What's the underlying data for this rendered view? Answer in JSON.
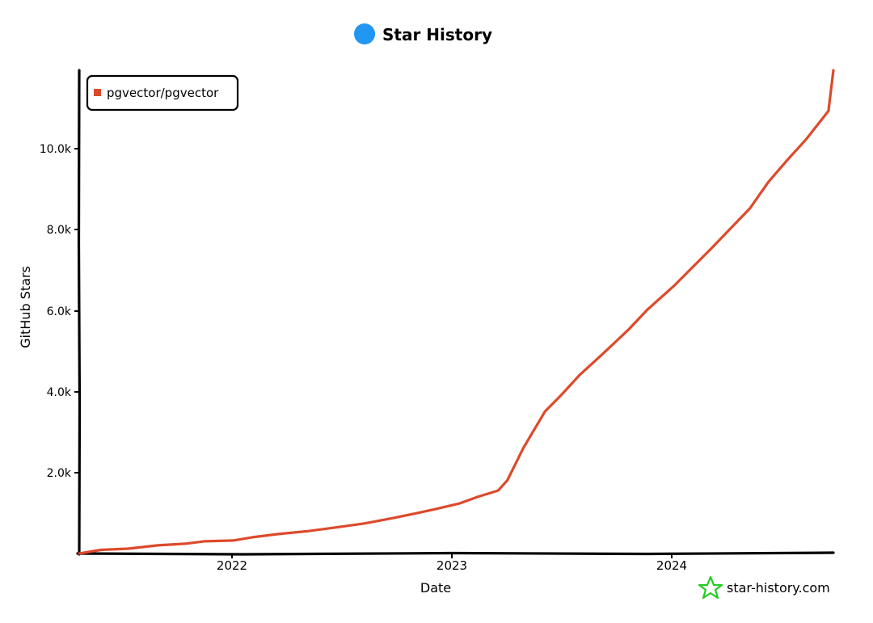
{
  "header": {
    "title": "Star History",
    "icon": "blue-circle-icon",
    "icon_color": "#2196F3"
  },
  "watermark": {
    "text": "star-history.com",
    "icon": "star-outline-icon",
    "icon_color": "#22cc22"
  },
  "chart_data": {
    "type": "line",
    "title": "Star History",
    "xlabel": "Date",
    "ylabel": "GitHub Stars",
    "x_ticks": [
      "2022",
      "2023",
      "2024"
    ],
    "y_ticks": [
      "2.0k",
      "4.0k",
      "6.0k",
      "8.0k",
      "10.0k"
    ],
    "x_range": [
      "2021-04-27",
      "2024-08-28"
    ],
    "ylim": [
      0,
      11900
    ],
    "legend": {
      "position": "top-left",
      "entries": [
        "pgvector/pgvector"
      ]
    },
    "grid": false,
    "series": [
      {
        "name": "pgvector/pgvector",
        "color": "#dd4a2b",
        "points": [
          [
            "2021-04-27",
            0
          ],
          [
            "2021-06-01",
            90
          ],
          [
            "2021-07-15",
            120
          ],
          [
            "2021-09-01",
            200
          ],
          [
            "2021-10-15",
            240
          ],
          [
            "2021-11-15",
            300
          ],
          [
            "2022-01-01",
            320
          ],
          [
            "2022-02-01",
            400
          ],
          [
            "2022-03-15",
            480
          ],
          [
            "2022-05-01",
            550
          ],
          [
            "2022-06-15",
            640
          ],
          [
            "2022-08-01",
            740
          ],
          [
            "2022-09-15",
            870
          ],
          [
            "2022-10-20",
            980
          ],
          [
            "2022-11-20",
            1080
          ],
          [
            "2023-01-01",
            1230
          ],
          [
            "2023-02-01",
            1400
          ],
          [
            "2023-03-05",
            1550
          ],
          [
            "2023-03-20",
            1800
          ],
          [
            "2023-04-15",
            2600
          ],
          [
            "2023-05-20",
            3500
          ],
          [
            "2023-06-15",
            3900
          ],
          [
            "2023-07-15",
            4400
          ],
          [
            "2023-08-20",
            4900
          ],
          [
            "2023-10-01",
            5500
          ],
          [
            "2023-11-01",
            6000
          ],
          [
            "2023-12-15",
            6600
          ],
          [
            "2024-02-15",
            7550
          ],
          [
            "2024-04-15",
            8500
          ],
          [
            "2024-05-15",
            9150
          ],
          [
            "2024-06-15",
            9700
          ],
          [
            "2024-07-15",
            10200
          ],
          [
            "2024-08-20",
            10900
          ],
          [
            "2024-08-28",
            11900
          ]
        ]
      }
    ]
  }
}
